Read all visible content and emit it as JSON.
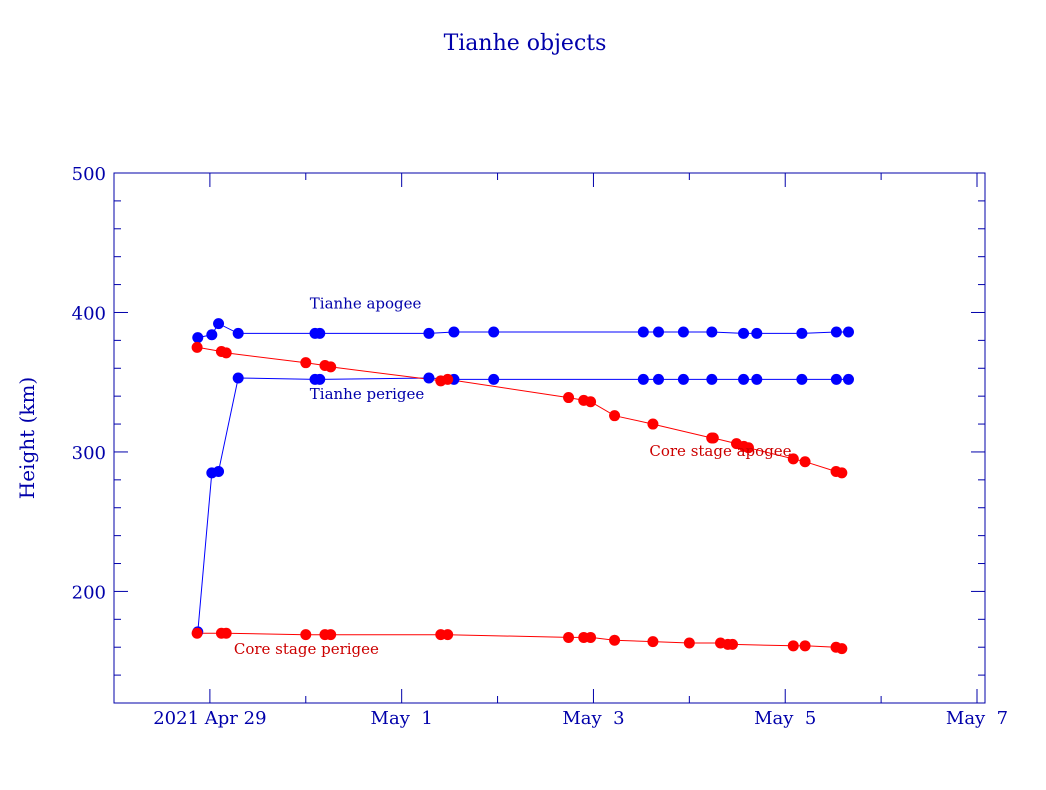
{
  "chart_data": {
    "type": "line",
    "title": "Tianhe objects",
    "xlabel": "",
    "ylabel": "Height (km)",
    "x_unit": "days (date axis)",
    "xlim": [
      "2021-04-28T00:00",
      "2021-05-07T02:00"
    ],
    "ylim": [
      120,
      500
    ],
    "y_ticks": [
      200,
      300,
      400,
      500
    ],
    "x_ticks": [
      {
        "x": "2021-04-29T00:00",
        "label": "2021 Apr 29"
      },
      {
        "x": "2021-05-01T00:00",
        "label": "May  1"
      },
      {
        "x": "2021-05-03T00:00",
        "label": "May  3"
      },
      {
        "x": "2021-05-05T00:00",
        "label": "May  5"
      },
      {
        "x": "2021-05-07T00:00",
        "label": "May  7"
      }
    ],
    "grid": false,
    "legend": "labels placed next to series",
    "series": [
      {
        "name": "Tianhe apogee",
        "color": "#0000ff",
        "points": [
          [
            "2021-04-28T20:58",
            382
          ],
          [
            "2021-04-29T00:29",
            384
          ],
          [
            "2021-04-29T02:10",
            392
          ],
          [
            "2021-04-29T07:05",
            385
          ],
          [
            "2021-04-30T02:19",
            385
          ],
          [
            "2021-04-30T03:30",
            385
          ],
          [
            "2021-05-01T06:49",
            385
          ],
          [
            "2021-05-01T13:05",
            386
          ],
          [
            "2021-05-01T23:02",
            386
          ],
          [
            "2021-05-03T12:29",
            386
          ],
          [
            "2021-05-03T16:17",
            386
          ],
          [
            "2021-05-03T22:31",
            386
          ],
          [
            "2021-05-04T05:38",
            386
          ],
          [
            "2021-05-04T13:34",
            385
          ],
          [
            "2021-05-04T16:53",
            385
          ],
          [
            "2021-05-05T04:10",
            385
          ],
          [
            "2021-05-05T12:48",
            386
          ],
          [
            "2021-05-05T15:50",
            386
          ]
        ],
        "label_x": "2021-04-30T01:00",
        "label_y": 403
      },
      {
        "name": "Tianhe perigee",
        "color": "#0000ff",
        "points": [
          [
            "2021-04-28T20:58",
            171
          ],
          [
            "2021-04-29T00:29",
            285
          ],
          [
            "2021-04-29T02:10",
            286
          ],
          [
            "2021-04-29T07:05",
            353
          ],
          [
            "2021-04-30T02:19",
            352
          ],
          [
            "2021-04-30T03:30",
            352
          ],
          [
            "2021-05-01T06:49",
            353
          ],
          [
            "2021-05-01T13:05",
            352
          ],
          [
            "2021-05-01T23:02",
            352
          ],
          [
            "2021-05-03T12:29",
            352
          ],
          [
            "2021-05-03T16:17",
            352
          ],
          [
            "2021-05-03T22:31",
            352
          ],
          [
            "2021-05-04T05:38",
            352
          ],
          [
            "2021-05-04T13:34",
            352
          ],
          [
            "2021-05-04T16:53",
            352
          ],
          [
            "2021-05-05T04:10",
            352
          ],
          [
            "2021-05-05T12:48",
            352
          ],
          [
            "2021-05-05T15:50",
            352
          ]
        ],
        "label_x": "2021-04-30T01:00",
        "label_y": 338
      },
      {
        "name": "Core stage apogee",
        "color": "#ff0000",
        "points": [
          [
            "2021-04-28T20:48",
            375
          ],
          [
            "2021-04-29T02:53",
            372
          ],
          [
            "2021-04-29T04:05",
            371
          ],
          [
            "2021-04-30T00:00",
            364
          ],
          [
            "2021-04-30T04:48",
            362
          ],
          [
            "2021-04-30T06:14",
            361
          ],
          [
            "2021-05-01T09:47",
            351
          ],
          [
            "2021-05-01T11:31",
            352
          ],
          [
            "2021-05-02T17:46",
            339
          ],
          [
            "2021-05-02T21:34",
            337
          ],
          [
            "2021-05-02T23:17",
            336
          ],
          [
            "2021-05-03T05:17",
            326
          ],
          [
            "2021-05-03T14:53",
            320
          ],
          [
            "2021-05-04T05:36",
            310
          ],
          [
            "2021-05-04T11:48",
            306
          ],
          [
            "2021-05-04T13:38",
            304
          ],
          [
            "2021-05-04T14:48",
            303
          ],
          [
            "2021-05-04T06:00",
            310
          ],
          [
            "2021-05-05T02:01",
            295
          ],
          [
            "2021-05-05T04:58",
            293
          ],
          [
            "2021-05-05T12:43",
            286
          ],
          [
            "2021-05-05T14:10",
            285
          ]
        ],
        "label_x": "2021-05-03T14:00",
        "label_y": 297
      },
      {
        "name": "Core stage perigee",
        "color": "#ff0000",
        "points": [
          [
            "2021-04-28T20:48",
            170
          ],
          [
            "2021-04-29T02:53",
            170
          ],
          [
            "2021-04-29T04:05",
            170
          ],
          [
            "2021-04-30T00:00",
            169
          ],
          [
            "2021-04-30T04:48",
            169
          ],
          [
            "2021-04-30T06:14",
            169
          ],
          [
            "2021-05-01T09:47",
            169
          ],
          [
            "2021-05-01T11:31",
            169
          ],
          [
            "2021-05-02T17:46",
            167
          ],
          [
            "2021-05-02T21:34",
            167
          ],
          [
            "2021-05-02T23:17",
            167
          ],
          [
            "2021-05-03T05:17",
            165
          ],
          [
            "2021-05-03T14:53",
            164
          ],
          [
            "2021-05-04T00:00",
            163
          ],
          [
            "2021-05-04T07:48",
            163
          ],
          [
            "2021-05-04T09:38",
            162
          ],
          [
            "2021-05-04T10:48",
            162
          ],
          [
            "2021-05-05T02:01",
            161
          ],
          [
            "2021-05-05T04:58",
            161
          ],
          [
            "2021-05-05T12:43",
            160
          ],
          [
            "2021-05-05T14:10",
            159
          ]
        ],
        "label_x": "2021-04-29T06:00",
        "label_y": 155
      }
    ]
  }
}
